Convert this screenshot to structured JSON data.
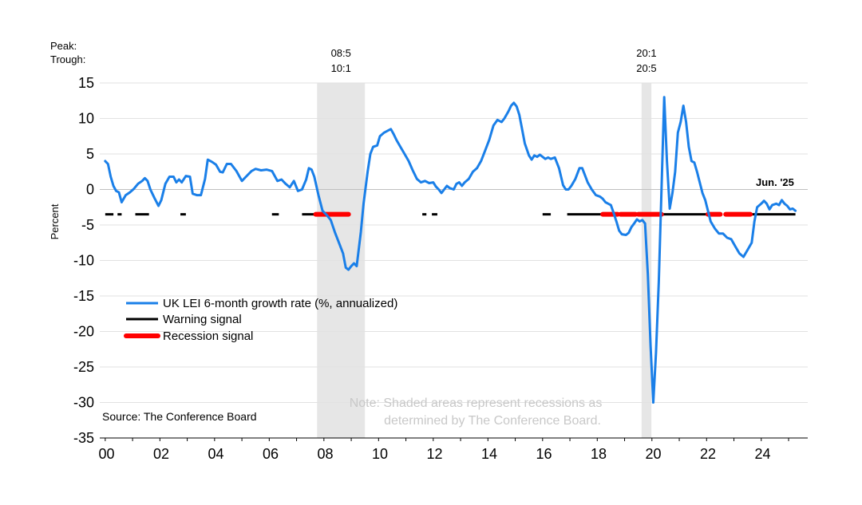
{
  "chart_data": {
    "type": "line",
    "ylabel": "Percent",
    "ylim": [
      -35,
      15
    ],
    "yticks": [
      "15",
      "10",
      "5",
      "0",
      "-5",
      "-10",
      "-15",
      "-20",
      "-25",
      "-30",
      "-35"
    ],
    "xlim": [
      1999.8,
      2025.7
    ],
    "xtick_labels": [
      {
        "year": 2000,
        "label": "00"
      },
      {
        "year": 2002,
        "label": "02"
      },
      {
        "year": 2004,
        "label": "04"
      },
      {
        "year": 2006,
        "label": "06"
      },
      {
        "year": 2008,
        "label": "08"
      },
      {
        "year": 2010,
        "label": "10"
      },
      {
        "year": 2012,
        "label": "12"
      },
      {
        "year": 2014,
        "label": "14"
      },
      {
        "year": 2016,
        "label": "16"
      },
      {
        "year": 2018,
        "label": "18"
      },
      {
        "year": 2020,
        "label": "20"
      },
      {
        "year": 2022,
        "label": "22"
      },
      {
        "year": 2024,
        "label": "24"
      }
    ],
    "grid": "horizontal",
    "peak_trough_header": [
      "Peak:",
      "Trough:"
    ],
    "recessions": [
      {
        "start": 2007.75,
        "end": 2009.5,
        "peak": "08:5",
        "trough": "10:1"
      },
      {
        "start": 2019.62,
        "end": 2019.98,
        "peak": "20:1",
        "trough": "20:5"
      }
    ],
    "signal_level": -3.5,
    "warning_segments": [
      [
        2000.0,
        2000.3
      ],
      [
        2000.45,
        2000.6
      ],
      [
        2001.1,
        2001.6
      ],
      [
        2002.75,
        2002.95
      ],
      [
        2006.1,
        2006.35
      ],
      [
        2007.2,
        2007.7
      ],
      [
        2011.6,
        2011.75
      ],
      [
        2011.95,
        2012.15
      ],
      [
        2016.0,
        2016.3
      ],
      [
        2016.9,
        2018.2
      ],
      [
        2020.35,
        2022.05
      ],
      [
        2023.6,
        2025.25
      ]
    ],
    "recession_segments": [
      [
        2007.7,
        2008.9
      ],
      [
        2018.2,
        2018.75
      ],
      [
        2018.85,
        2019.4
      ],
      [
        2019.5,
        2020.35
      ],
      [
        2022.05,
        2022.5
      ],
      [
        2022.7,
        2023.6
      ]
    ],
    "series": [
      {
        "name": "UK LEI 6-month growth rate (%, annualized)",
        "color": "#1a7fe8",
        "points": [
          [
            2000.0,
            4.0
          ],
          [
            2000.1,
            3.6
          ],
          [
            2000.2,
            1.8
          ],
          [
            2000.3,
            0.5
          ],
          [
            2000.4,
            -0.2
          ],
          [
            2000.5,
            -0.4
          ],
          [
            2000.6,
            -1.8
          ],
          [
            2000.75,
            -0.8
          ],
          [
            2000.9,
            -0.4
          ],
          [
            2001.05,
            0.1
          ],
          [
            2001.2,
            0.8
          ],
          [
            2001.35,
            1.2
          ],
          [
            2001.45,
            1.6
          ],
          [
            2001.55,
            1.2
          ],
          [
            2001.65,
            0.0
          ],
          [
            2001.8,
            -1.2
          ],
          [
            2001.95,
            -2.3
          ],
          [
            2002.05,
            -1.5
          ],
          [
            2002.2,
            0.8
          ],
          [
            2002.35,
            1.8
          ],
          [
            2002.5,
            1.8
          ],
          [
            2002.6,
            1.0
          ],
          [
            2002.7,
            1.4
          ],
          [
            2002.8,
            1.0
          ],
          [
            2002.95,
            1.9
          ],
          [
            2003.1,
            1.8
          ],
          [
            2003.2,
            -0.6
          ],
          [
            2003.35,
            -0.8
          ],
          [
            2003.5,
            -0.8
          ],
          [
            2003.65,
            1.5
          ],
          [
            2003.75,
            4.2
          ],
          [
            2003.9,
            3.9
          ],
          [
            2004.05,
            3.5
          ],
          [
            2004.2,
            2.5
          ],
          [
            2004.3,
            2.4
          ],
          [
            2004.45,
            3.6
          ],
          [
            2004.6,
            3.6
          ],
          [
            2004.8,
            2.6
          ],
          [
            2005.0,
            1.2
          ],
          [
            2005.15,
            1.8
          ],
          [
            2005.35,
            2.6
          ],
          [
            2005.5,
            2.9
          ],
          [
            2005.7,
            2.7
          ],
          [
            2005.9,
            2.8
          ],
          [
            2006.1,
            2.6
          ],
          [
            2006.3,
            1.2
          ],
          [
            2006.45,
            1.4
          ],
          [
            2006.6,
            0.8
          ],
          [
            2006.75,
            0.3
          ],
          [
            2006.9,
            1.2
          ],
          [
            2007.05,
            -0.2
          ],
          [
            2007.2,
            0.0
          ],
          [
            2007.35,
            1.4
          ],
          [
            2007.45,
            3.0
          ],
          [
            2007.55,
            2.8
          ],
          [
            2007.65,
            1.8
          ],
          [
            2007.8,
            -0.8
          ],
          [
            2007.95,
            -3.0
          ],
          [
            2008.1,
            -3.6
          ],
          [
            2008.25,
            -4.3
          ],
          [
            2008.4,
            -6.0
          ],
          [
            2008.55,
            -7.5
          ],
          [
            2008.7,
            -9.0
          ],
          [
            2008.8,
            -11.0
          ],
          [
            2008.9,
            -11.3
          ],
          [
            2009.0,
            -10.8
          ],
          [
            2009.1,
            -10.4
          ],
          [
            2009.2,
            -10.8
          ],
          [
            2009.35,
            -6.0
          ],
          [
            2009.45,
            -2.0
          ],
          [
            2009.6,
            2.5
          ],
          [
            2009.7,
            5.0
          ],
          [
            2009.8,
            6.0
          ],
          [
            2009.95,
            6.2
          ],
          [
            2010.05,
            7.5
          ],
          [
            2010.2,
            8.0
          ],
          [
            2010.35,
            8.3
          ],
          [
            2010.45,
            8.5
          ],
          [
            2010.55,
            7.8
          ],
          [
            2010.65,
            7.0
          ],
          [
            2010.8,
            6.0
          ],
          [
            2010.95,
            5.0
          ],
          [
            2011.1,
            4.0
          ],
          [
            2011.25,
            2.7
          ],
          [
            2011.4,
            1.5
          ],
          [
            2011.55,
            1.0
          ],
          [
            2011.7,
            1.2
          ],
          [
            2011.85,
            0.9
          ],
          [
            2012.0,
            1.0
          ],
          [
            2012.1,
            0.4
          ],
          [
            2012.2,
            0.0
          ],
          [
            2012.3,
            -0.5
          ],
          [
            2012.4,
            0.0
          ],
          [
            2012.5,
            0.5
          ],
          [
            2012.6,
            0.2
          ],
          [
            2012.75,
            0.0
          ],
          [
            2012.85,
            0.8
          ],
          [
            2012.95,
            1.0
          ],
          [
            2013.05,
            0.5
          ],
          [
            2013.15,
            1.0
          ],
          [
            2013.3,
            1.5
          ],
          [
            2013.45,
            2.5
          ],
          [
            2013.6,
            3.0
          ],
          [
            2013.75,
            4.0
          ],
          [
            2013.9,
            5.5
          ],
          [
            2014.05,
            7.0
          ],
          [
            2014.2,
            9.0
          ],
          [
            2014.35,
            9.8
          ],
          [
            2014.5,
            9.5
          ],
          [
            2014.6,
            10.0
          ],
          [
            2014.75,
            11.0
          ],
          [
            2014.85,
            11.8
          ],
          [
            2014.95,
            12.2
          ],
          [
            2015.05,
            11.7
          ],
          [
            2015.15,
            10.5
          ],
          [
            2015.25,
            8.5
          ],
          [
            2015.35,
            6.5
          ],
          [
            2015.5,
            4.8
          ],
          [
            2015.6,
            4.2
          ],
          [
            2015.7,
            4.8
          ],
          [
            2015.8,
            4.6
          ],
          [
            2015.9,
            4.9
          ],
          [
            2016.0,
            4.6
          ],
          [
            2016.1,
            4.3
          ],
          [
            2016.2,
            4.5
          ],
          [
            2016.3,
            4.3
          ],
          [
            2016.45,
            4.5
          ],
          [
            2016.6,
            3.0
          ],
          [
            2016.75,
            0.6
          ],
          [
            2016.85,
            0.0
          ],
          [
            2016.95,
            0.0
          ],
          [
            2017.05,
            0.5
          ],
          [
            2017.2,
            1.5
          ],
          [
            2017.35,
            3.0
          ],
          [
            2017.45,
            3.0
          ],
          [
            2017.55,
            2.0
          ],
          [
            2017.65,
            1.0
          ],
          [
            2017.8,
            0.0
          ],
          [
            2017.95,
            -0.8
          ],
          [
            2018.1,
            -1.0
          ],
          [
            2018.2,
            -1.3
          ],
          [
            2018.3,
            -1.8
          ],
          [
            2018.4,
            -2.0
          ],
          [
            2018.5,
            -2.2
          ],
          [
            2018.6,
            -3.3
          ],
          [
            2018.7,
            -4.5
          ],
          [
            2018.8,
            -5.8
          ],
          [
            2018.9,
            -6.3
          ],
          [
            2019.05,
            -6.4
          ],
          [
            2019.15,
            -6.1
          ],
          [
            2019.25,
            -5.3
          ],
          [
            2019.35,
            -4.8
          ],
          [
            2019.45,
            -4.2
          ],
          [
            2019.55,
            -4.5
          ],
          [
            2019.65,
            -4.3
          ],
          [
            2019.75,
            -4.8
          ],
          [
            2019.85,
            -12.0
          ],
          [
            2019.95,
            -22.0
          ],
          [
            2020.05,
            -30.0
          ],
          [
            2020.15,
            -23.0
          ],
          [
            2020.25,
            -13.0
          ],
          [
            2020.35,
            0.0
          ],
          [
            2020.45,
            13.0
          ],
          [
            2020.55,
            4.0
          ],
          [
            2020.65,
            -2.7
          ],
          [
            2020.75,
            -0.5
          ],
          [
            2020.85,
            2.5
          ],
          [
            2020.95,
            8.0
          ],
          [
            2021.05,
            9.5
          ],
          [
            2021.15,
            11.8
          ],
          [
            2021.25,
            9.5
          ],
          [
            2021.35,
            6.0
          ],
          [
            2021.45,
            4.0
          ],
          [
            2021.55,
            3.8
          ],
          [
            2021.65,
            2.5
          ],
          [
            2021.75,
            1.0
          ],
          [
            2021.85,
            -0.5
          ],
          [
            2021.95,
            -1.5
          ],
          [
            2022.05,
            -3.0
          ],
          [
            2022.15,
            -4.5
          ],
          [
            2022.3,
            -5.5
          ],
          [
            2022.45,
            -6.2
          ],
          [
            2022.6,
            -6.2
          ],
          [
            2022.75,
            -6.8
          ],
          [
            2022.9,
            -7.0
          ],
          [
            2023.05,
            -8.0
          ],
          [
            2023.2,
            -9.0
          ],
          [
            2023.35,
            -9.5
          ],
          [
            2023.5,
            -8.5
          ],
          [
            2023.65,
            -7.5
          ],
          [
            2023.75,
            -4.5
          ],
          [
            2023.85,
            -2.5
          ],
          [
            2024.0,
            -2.0
          ],
          [
            2024.1,
            -1.6
          ],
          [
            2024.2,
            -2.0
          ],
          [
            2024.3,
            -2.8
          ],
          [
            2024.4,
            -2.2
          ],
          [
            2024.55,
            -2.0
          ],
          [
            2024.65,
            -2.2
          ],
          [
            2024.75,
            -1.5
          ],
          [
            2024.85,
            -2.0
          ],
          [
            2024.95,
            -2.3
          ],
          [
            2025.05,
            -2.8
          ],
          [
            2025.15,
            -2.7
          ],
          [
            2025.25,
            -3.0
          ]
        ]
      },
      {
        "name": "Warning signal",
        "color": "#000000"
      },
      {
        "name": "Recession signal",
        "color": "#ff0000"
      }
    ],
    "annotations": {
      "latest": "Jun. '25",
      "source": "Source: The Conference Board",
      "note_line1": "Note: Shaded areas represent recessions as",
      "note_line2": "determined by The Conference Board."
    }
  }
}
